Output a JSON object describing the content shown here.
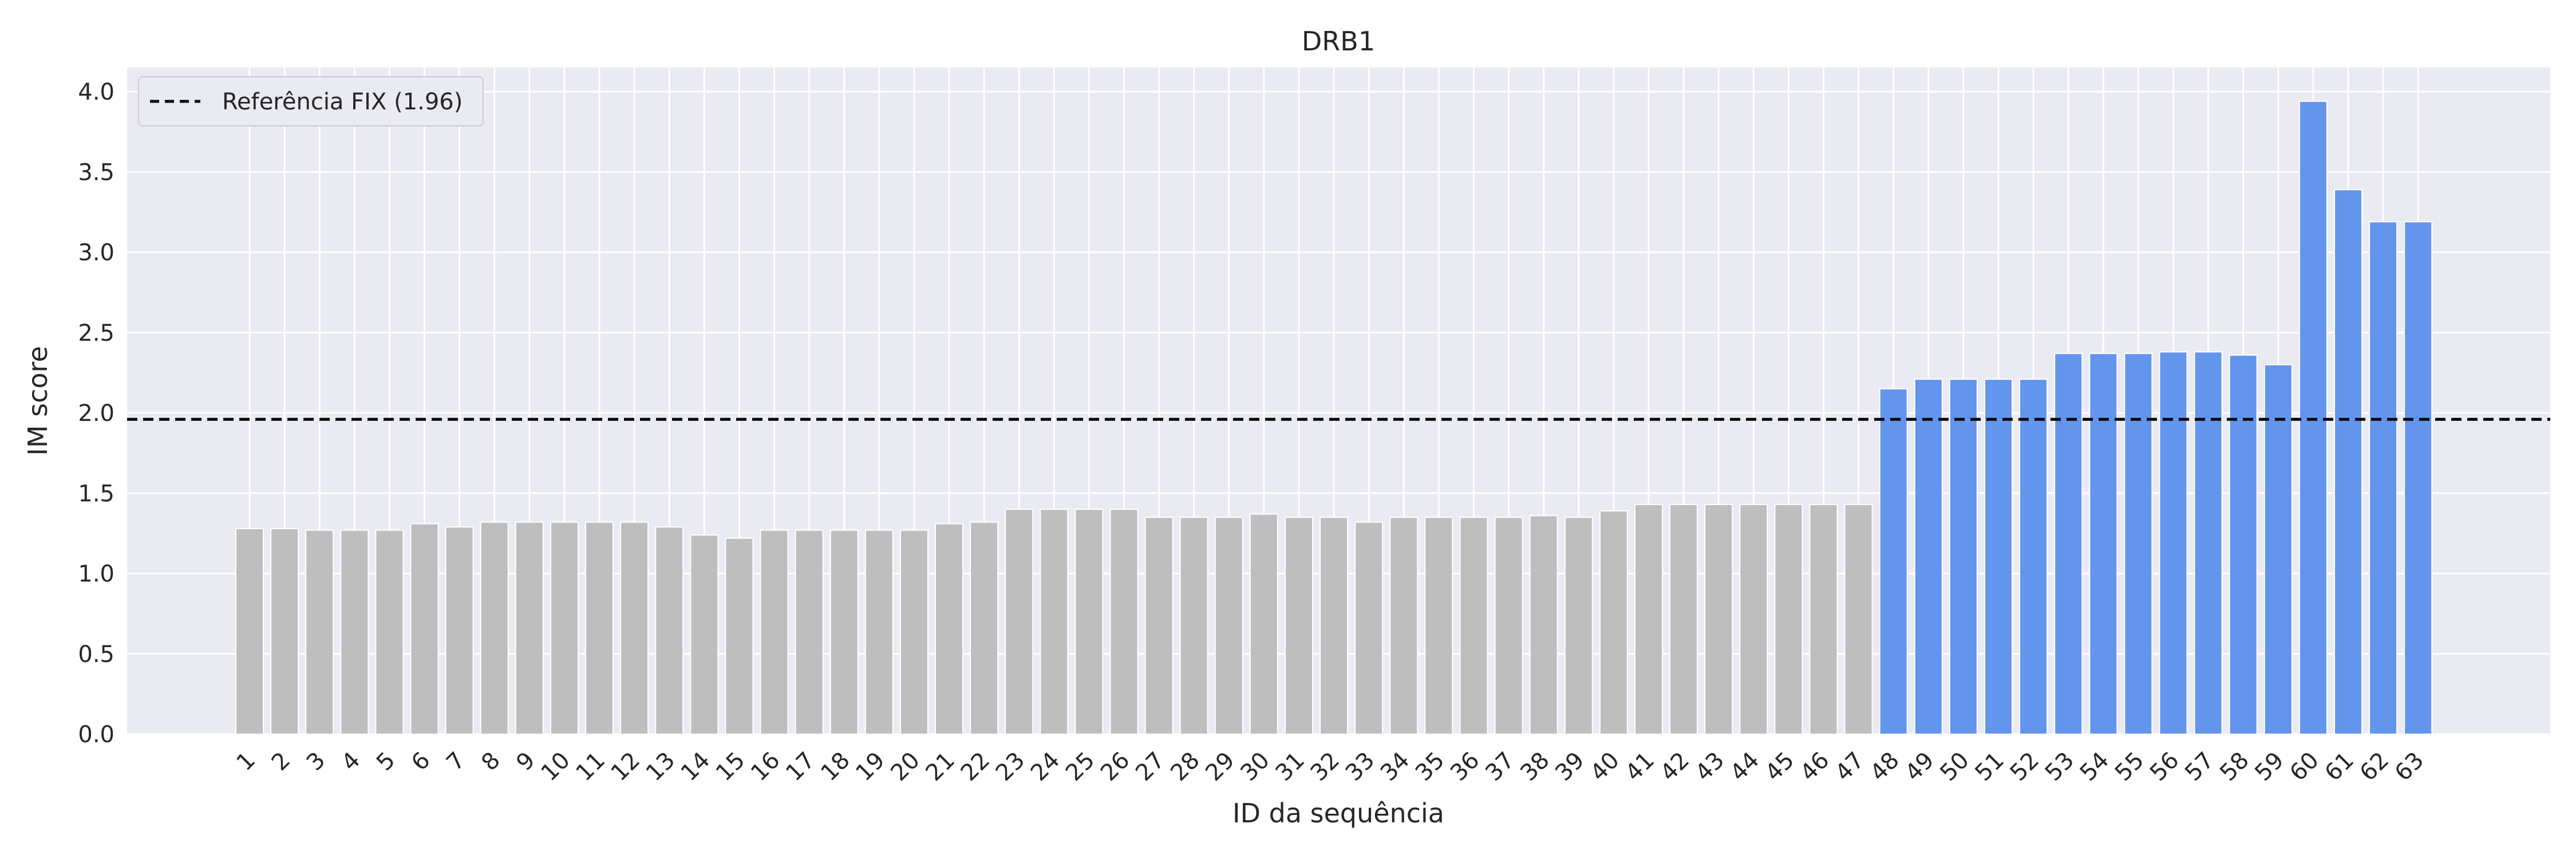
{
  "chart_data": {
    "type": "bar",
    "title": "DRB1",
    "xlabel": "ID da sequência",
    "ylabel": "IM score",
    "ylim": [
      0,
      4.15
    ],
    "yticks": [
      "0.0",
      "0.5",
      "1.0",
      "1.5",
      "2.0",
      "2.5",
      "3.0",
      "3.5",
      "4.0"
    ],
    "grid": true,
    "categories": [
      "1",
      "2",
      "3",
      "4",
      "5",
      "6",
      "7",
      "8",
      "9",
      "10",
      "11",
      "12",
      "13",
      "14",
      "15",
      "16",
      "17",
      "18",
      "19",
      "20",
      "21",
      "22",
      "23",
      "24",
      "25",
      "26",
      "27",
      "28",
      "29",
      "30",
      "31",
      "32",
      "33",
      "34",
      "35",
      "36",
      "37",
      "38",
      "39",
      "40",
      "41",
      "42",
      "43",
      "44",
      "45",
      "46",
      "47",
      "48",
      "49",
      "50",
      "51",
      "52",
      "53",
      "54",
      "55",
      "56",
      "57",
      "58",
      "59",
      "60",
      "61",
      "62",
      "63"
    ],
    "values": [
      1.28,
      1.28,
      1.27,
      1.27,
      1.27,
      1.31,
      1.29,
      1.32,
      1.32,
      1.32,
      1.32,
      1.32,
      1.29,
      1.24,
      1.22,
      1.27,
      1.27,
      1.27,
      1.27,
      1.27,
      1.31,
      1.32,
      1.4,
      1.4,
      1.4,
      1.4,
      1.35,
      1.35,
      1.35,
      1.37,
      1.35,
      1.35,
      1.32,
      1.35,
      1.35,
      1.35,
      1.35,
      1.36,
      1.35,
      1.39,
      1.43,
      1.43,
      1.43,
      1.43,
      1.43,
      1.43,
      1.43,
      2.15,
      2.21,
      2.21,
      2.21,
      2.21,
      2.37,
      2.37,
      2.37,
      2.38,
      2.38,
      2.36,
      2.3,
      3.94,
      3.39,
      3.19,
      3.19
    ],
    "colors": {
      "below": "#bebebe",
      "above": "#6495ed",
      "background": "#eaeaf2",
      "grid": "#ffffff",
      "reference": "#000000"
    },
    "reference": {
      "value": 1.96,
      "label": "Referência FIX (1.96)"
    },
    "legend": {
      "position": "top-left"
    }
  }
}
